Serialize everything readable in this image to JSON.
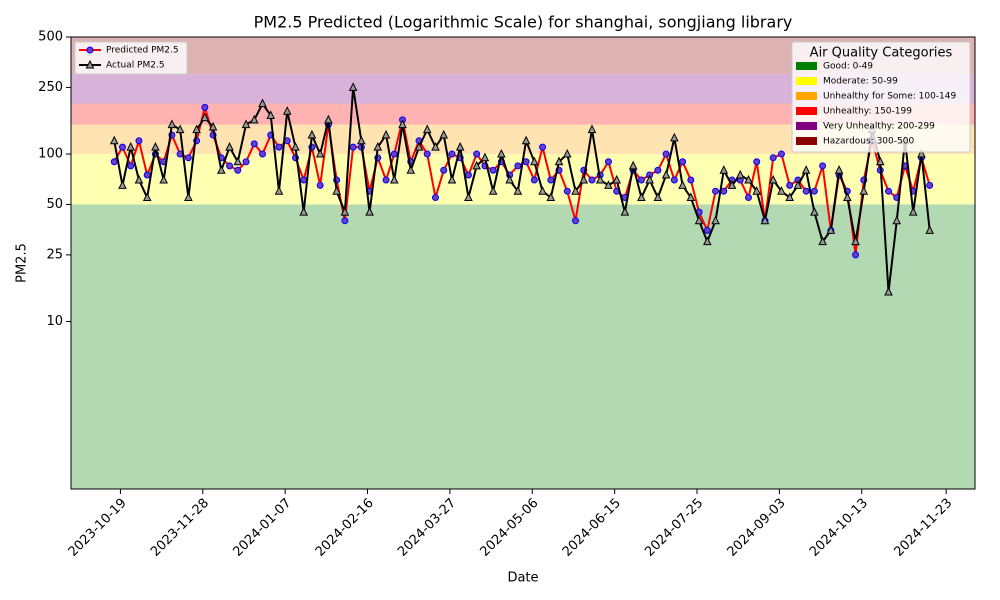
{
  "chart_data": {
    "type": "line",
    "title": "PM2.5 Predicted (Logarithmic Scale) for shanghai, songjiang library",
    "xlabel": "Date",
    "ylabel": "PM2.5",
    "log_y": true,
    "legend": "upper left",
    "xlim": [
      "2023-09-25",
      "2024-12-07"
    ],
    "xticks": [
      "2023-10-19",
      "2023-11-28",
      "2024-01-07",
      "2024-02-16",
      "2024-03-27",
      "2024-05-06",
      "2024-06-15",
      "2024-07-25",
      "2024-09-03",
      "2024-10-13",
      "2024-11-23"
    ],
    "ylim": [
      1,
      500
    ],
    "yticks": [
      10,
      25,
      50,
      100,
      250,
      500
    ],
    "x": [
      "2023-10-16",
      "2023-10-20",
      "2023-10-24",
      "2023-10-28",
      "2023-11-01",
      "2023-11-05",
      "2023-11-09",
      "2023-11-13",
      "2023-11-17",
      "2023-11-21",
      "2023-11-25",
      "2023-11-29",
      "2023-12-03",
      "2023-12-07",
      "2023-12-11",
      "2023-12-15",
      "2023-12-19",
      "2023-12-23",
      "2023-12-27",
      "2023-12-31",
      "2024-01-04",
      "2024-01-08",
      "2024-01-12",
      "2024-01-16",
      "2024-01-20",
      "2024-01-24",
      "2024-01-28",
      "2024-02-01",
      "2024-02-05",
      "2024-02-09",
      "2024-02-13",
      "2024-02-17",
      "2024-02-21",
      "2024-02-25",
      "2024-02-29",
      "2024-03-04",
      "2024-03-08",
      "2024-03-12",
      "2024-03-16",
      "2024-03-20",
      "2024-03-24",
      "2024-03-28",
      "2024-04-01",
      "2024-04-05",
      "2024-04-09",
      "2024-04-13",
      "2024-04-17",
      "2024-04-21",
      "2024-04-25",
      "2024-04-29",
      "2024-05-03",
      "2024-05-07",
      "2024-05-11",
      "2024-05-15",
      "2024-05-19",
      "2024-05-23",
      "2024-05-27",
      "2024-05-31",
      "2024-06-04",
      "2024-06-08",
      "2024-06-12",
      "2024-06-16",
      "2024-06-20",
      "2024-06-24",
      "2024-06-28",
      "2024-07-02",
      "2024-07-06",
      "2024-07-10",
      "2024-07-14",
      "2024-07-18",
      "2024-07-22",
      "2024-07-26",
      "2024-07-30",
      "2024-08-03",
      "2024-08-07",
      "2024-08-11",
      "2024-08-15",
      "2024-08-19",
      "2024-08-23",
      "2024-08-27",
      "2024-08-31",
      "2024-09-04",
      "2024-09-08",
      "2024-09-12",
      "2024-09-16",
      "2024-09-20",
      "2024-09-24",
      "2024-09-28",
      "2024-10-02",
      "2024-10-06",
      "2024-10-10",
      "2024-10-14",
      "2024-10-18",
      "2024-10-22",
      "2024-10-26",
      "2024-10-30",
      "2024-11-03",
      "2024-11-07",
      "2024-11-11",
      "2024-11-15"
    ],
    "series": [
      {
        "name": "Predicted PM2.5",
        "color": "red",
        "marker": "circle",
        "marker_color": "#6a3fc8",
        "marker_edge": "blue",
        "values": [
          90,
          110,
          85,
          120,
          75,
          100,
          90,
          130,
          100,
          95,
          120,
          190,
          130,
          95,
          85,
          80,
          90,
          115,
          100,
          130,
          110,
          120,
          95,
          70,
          110,
          65,
          150,
          70,
          40,
          110,
          110,
          60,
          95,
          70,
          100,
          160,
          90,
          120,
          100,
          55,
          80,
          100,
          95,
          75,
          100,
          85,
          80,
          90,
          75,
          85,
          90,
          70,
          110,
          70,
          80,
          60,
          40,
          80,
          70,
          75,
          90,
          60,
          55,
          80,
          70,
          75,
          80,
          100,
          70,
          90,
          70,
          45,
          35,
          60,
          60,
          70,
          70,
          55,
          90,
          40,
          95,
          100,
          65,
          70,
          60,
          60,
          85,
          35,
          75,
          60,
          25,
          70,
          120,
          80,
          60,
          55,
          85,
          60,
          95,
          65
        ]
      },
      {
        "name": "Actual PM2.5",
        "color": "black",
        "marker": "triangle",
        "marker_color": "#999999",
        "marker_edge": "black",
        "values": [
          120,
          65,
          110,
          70,
          55,
          110,
          70,
          150,
          140,
          55,
          140,
          165,
          145,
          80,
          110,
          90,
          150,
          160,
          200,
          170,
          60,
          180,
          110,
          45,
          130,
          100,
          160,
          60,
          45,
          250,
          120,
          45,
          110,
          130,
          70,
          150,
          80,
          110,
          140,
          110,
          130,
          70,
          110,
          55,
          85,
          95,
          60,
          100,
          70,
          60,
          120,
          90,
          60,
          55,
          90,
          100,
          60,
          70,
          140,
          70,
          65,
          70,
          45,
          85,
          55,
          70,
          55,
          75,
          125,
          65,
          55,
          40,
          30,
          40,
          80,
          65,
          75,
          70,
          60,
          40,
          70,
          60,
          55,
          65,
          80,
          45,
          30,
          35,
          80,
          55,
          30,
          60,
          140,
          90,
          15,
          40,
          120,
          45,
          100,
          35
        ]
      }
    ],
    "categories_title": "Air Quality Categories",
    "categories_legend": "upper right",
    "aqi_categories": [
      {
        "label": "Good: 0-49",
        "color": "green",
        "upper": 50
      },
      {
        "label": "Moderate: 50-99",
        "color": "yellow",
        "upper": 100
      },
      {
        "label": "Unhealthy for Some: 100-149",
        "color": "orange",
        "upper": 150
      },
      {
        "label": "Unhealthy: 150-199",
        "color": "red",
        "upper": 200
      },
      {
        "label": "Very Unhealthy: 200-299",
        "color": "purple",
        "upper": 300
      },
      {
        "label": "Hazardous: 300-500",
        "color": "darkred",
        "upper": 500
      }
    ]
  }
}
